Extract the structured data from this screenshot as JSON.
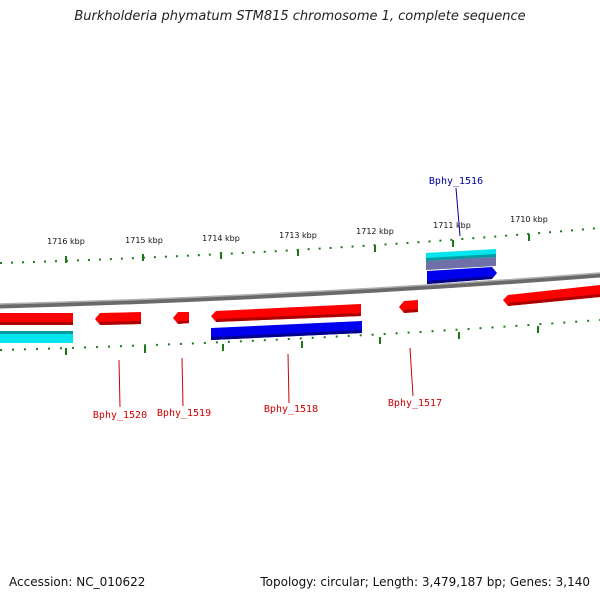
{
  "title": "Burkholderia phymatum STM815 chromosome 1, complete sequence",
  "footer": {
    "accession": "Accession: NC_010622",
    "summary": "Topology: circular; Length: 3,479,187 bp; Genes: 3,140"
  },
  "colors": {
    "forward_gene": "#ff0000",
    "reverse_gene": "#0000ee",
    "cds_cyan": "#00e5ee",
    "backbone": "#808080",
    "ticks": "#1a7a1a",
    "label_red": "#cc0000",
    "label_blue": "#000099"
  },
  "scale_labels": [
    "1716 kbp",
    "1715 kbp",
    "1714 kbp",
    "1713 kbp",
    "1712 kbp",
    "1711 kbp",
    "1710 kbp"
  ],
  "genes": [
    {
      "label": "Bphy_1520",
      "color": "red"
    },
    {
      "label": "Bphy_1519",
      "color": "red"
    },
    {
      "label": "Bphy_1518",
      "color": "red"
    },
    {
      "label": "Bphy_1517",
      "color": "red"
    },
    {
      "label": "Bphy_1516",
      "color": "blue"
    }
  ]
}
